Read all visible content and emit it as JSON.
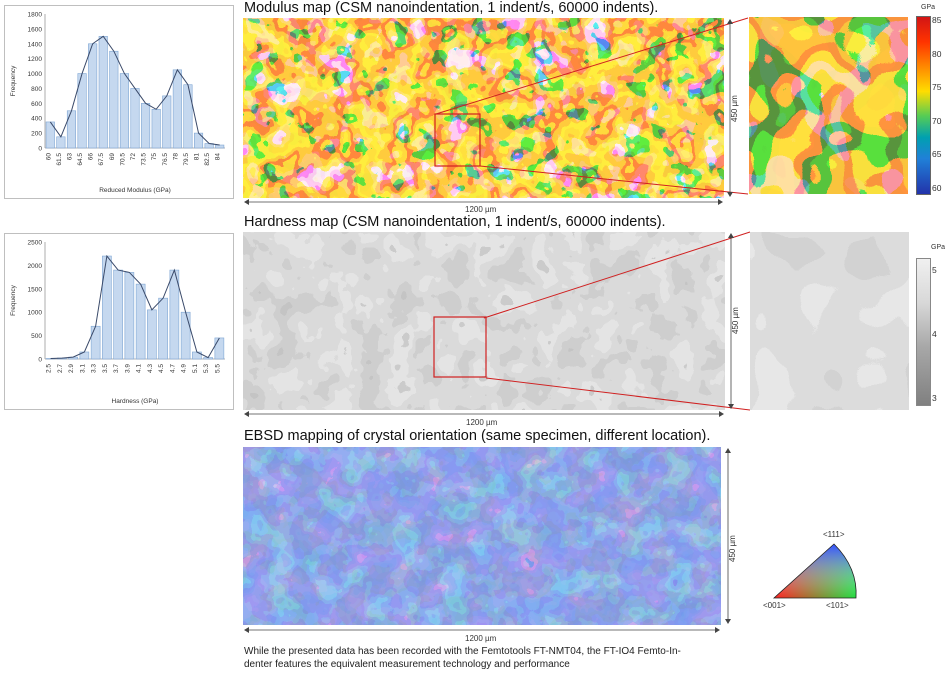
{
  "modulus": {
    "title": "Modulus map (CSM nanoindentation, 1 indent/s, 60000 indents).",
    "width_label": "1200 µm",
    "height_label": "450 µm",
    "colorbar": {
      "unit": "GPa",
      "ticks": [
        "85",
        "80",
        "75",
        "70",
        "65",
        "60"
      ]
    }
  },
  "hardness": {
    "title": "Hardness map (CSM nanoindentation, 1 indent/s, 60000 indents).",
    "width_label": "1200 µm",
    "height_label": "450 µm",
    "colorbar": {
      "unit": "GPa",
      "ticks": [
        "5",
        "4",
        "3"
      ]
    }
  },
  "ebsd": {
    "title": "EBSD mapping of crystal orientation (same specimen, different location).",
    "width_label": "1200 µm",
    "height_label": "450 µm",
    "legend": {
      "top": "<111>",
      "left": "<001>",
      "right": "<101>"
    }
  },
  "footer": {
    "line1": "While the presented data has been recorded with the Femtotools FT-NMT04, the FT-IO4 Femto-In-",
    "line2": "denter features the equivalent measurement technology and performance"
  },
  "chart_data": [
    {
      "type": "bar",
      "title": "",
      "xlabel": "Reduced Modulus (GPa)",
      "ylabel": "Frequency",
      "ylim": [
        0,
        1800
      ],
      "y_ticks": [
        "1800",
        "1600",
        "1400",
        "1200",
        "1000",
        "800",
        "600",
        "400",
        "200",
        "0"
      ],
      "categories": [
        "60",
        "61.5",
        "63",
        "64.5",
        "66",
        "67.5",
        "69",
        "70.5",
        "72",
        "73.5",
        "75",
        "76.5",
        "78",
        "79.5",
        "81",
        "82.5",
        "84"
      ],
      "values": [
        350,
        150,
        500,
        1000,
        1400,
        1500,
        1300,
        1000,
        800,
        600,
        520,
        700,
        1050,
        850,
        200,
        60,
        40
      ]
    },
    {
      "type": "bar",
      "title": "",
      "xlabel": "Hardness (GPa)",
      "ylabel": "Frequency",
      "ylim": [
        0,
        2500
      ],
      "y_ticks": [
        "2500",
        "2000",
        "1500",
        "1000",
        "500",
        "0"
      ],
      "categories": [
        "2.5",
        "2.7",
        "2.9",
        "3.1",
        "3.3",
        "3.5",
        "3.7",
        "3.9",
        "4.1",
        "4.3",
        "4.5",
        "4.7",
        "4.9",
        "5.1",
        "5.3",
        "5.5"
      ],
      "values": [
        10,
        20,
        40,
        150,
        700,
        2200,
        1900,
        1850,
        1600,
        1050,
        1300,
        1900,
        1000,
        150,
        30,
        450
      ]
    }
  ]
}
